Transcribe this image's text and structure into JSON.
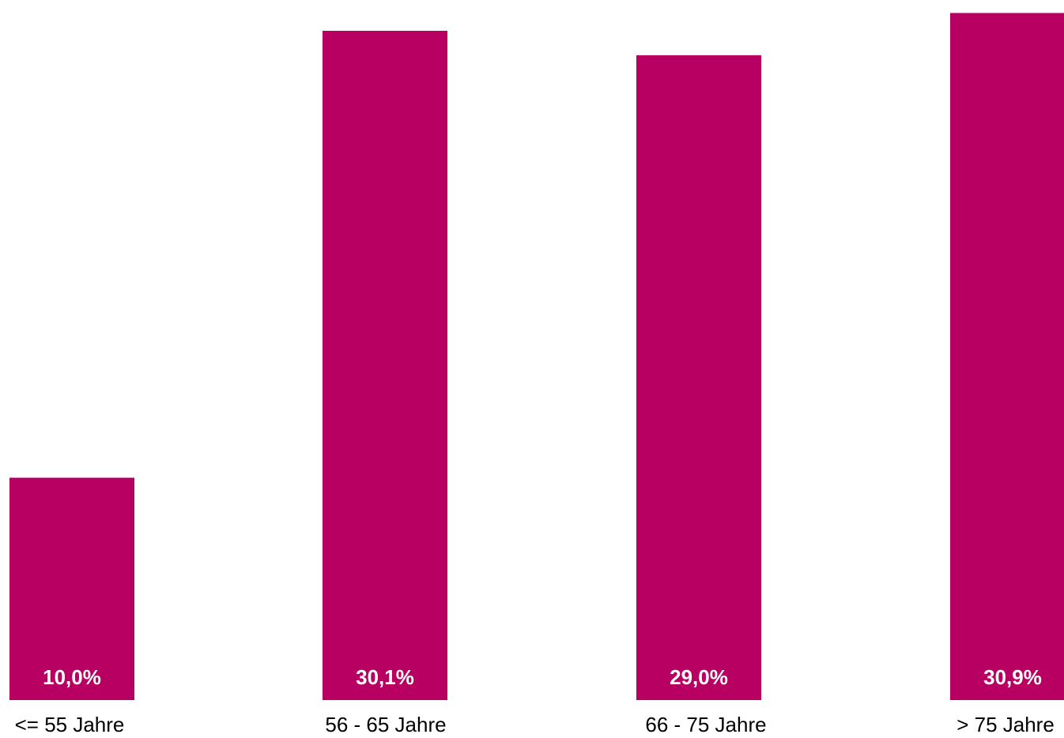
{
  "chart_data": {
    "type": "bar",
    "categories": [
      "<= 55 Jahre",
      "56 - 65 Jahre",
      "66 - 75 Jahre",
      "> 75 Jahre"
    ],
    "values": [
      10.0,
      30.1,
      29.0,
      30.9
    ],
    "data_labels": [
      "10,0%",
      "30,1%",
      "29,0%",
      "30,9%"
    ],
    "title": "",
    "xlabel": "",
    "ylabel": "",
    "ylim": [
      0,
      31.2
    ],
    "grid": false,
    "legend": "none",
    "colors": {
      "bar": "#b80062",
      "data_label": "#ffffff",
      "tick_label": "#000000"
    }
  }
}
